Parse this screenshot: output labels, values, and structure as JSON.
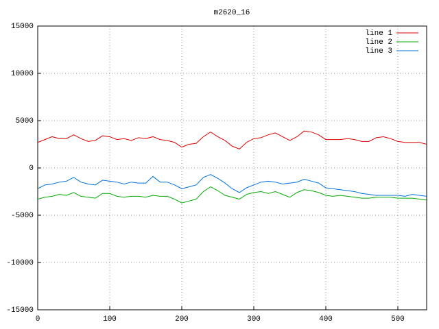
{
  "chart_data": {
    "type": "line",
    "title": "m2620_16",
    "x": [
      0,
      10,
      20,
      30,
      40,
      50,
      60,
      70,
      80,
      90,
      100,
      110,
      120,
      130,
      140,
      150,
      160,
      170,
      180,
      190,
      200,
      210,
      220,
      230,
      240,
      250,
      260,
      270,
      280,
      290,
      300,
      310,
      320,
      330,
      340,
      350,
      360,
      370,
      380,
      390,
      400,
      410,
      420,
      430,
      440,
      450,
      460,
      470,
      480,
      490,
      500,
      510,
      520,
      530,
      540
    ],
    "series": [
      {
        "name": "line 1",
        "color": "#dd0000",
        "values": [
          2700,
          3000,
          3300,
          3100,
          3100,
          3500,
          3100,
          2800,
          2900,
          3400,
          3300,
          3000,
          3100,
          2900,
          3200,
          3100,
          3300,
          3000,
          2900,
          2700,
          2200,
          2500,
          2600,
          3300,
          3800,
          3300,
          2900,
          2300,
          2000,
          2700,
          3100,
          3200,
          3500,
          3700,
          3300,
          2900,
          3300,
          3900,
          3800,
          3500,
          3000,
          3000,
          3000,
          3100,
          3000,
          2800,
          2800,
          3200,
          3300,
          3100,
          2800,
          2700,
          2700,
          2700,
          2500
        ]
      },
      {
        "name": "line 2",
        "color": "#00aa00",
        "values": [
          -3300,
          -3100,
          -3000,
          -2800,
          -2900,
          -2600,
          -3000,
          -3100,
          -3200,
          -2700,
          -2700,
          -3000,
          -3100,
          -3000,
          -3000,
          -3100,
          -2900,
          -3000,
          -3000,
          -3300,
          -3700,
          -3500,
          -3300,
          -2500,
          -2000,
          -2400,
          -2900,
          -3100,
          -3300,
          -2800,
          -2600,
          -2500,
          -2700,
          -2500,
          -2800,
          -3100,
          -2600,
          -2300,
          -2400,
          -2600,
          -2900,
          -3000,
          -2900,
          -3000,
          -3100,
          -3200,
          -3200,
          -3100,
          -3100,
          -3100,
          -3200,
          -3200,
          -3200,
          -3300,
          -3400
        ]
      },
      {
        "name": "line 3",
        "color": "#0070dd",
        "values": [
          -2200,
          -1800,
          -1700,
          -1500,
          -1400,
          -1000,
          -1500,
          -1700,
          -1800,
          -1300,
          -1400,
          -1500,
          -1700,
          -1500,
          -1600,
          -1600,
          -900,
          -1500,
          -1500,
          -1800,
          -2200,
          -2000,
          -1800,
          -1000,
          -700,
          -1100,
          -1600,
          -2200,
          -2600,
          -2100,
          -1800,
          -1500,
          -1400,
          -1500,
          -1700,
          -1600,
          -1500,
          -1200,
          -1400,
          -1600,
          -2100,
          -2200,
          -2300,
          -2400,
          -2500,
          -2700,
          -2800,
          -2900,
          -2900,
          -2900,
          -2900,
          -3000,
          -2800,
          -2900,
          -3000
        ]
      }
    ],
    "xlim": [
      0,
      540
    ],
    "xticks": [
      0,
      100,
      200,
      300,
      400,
      500
    ],
    "ylim": [
      -15000,
      15000
    ],
    "yticks": [
      -15000,
      -10000,
      -5000,
      0,
      5000,
      10000,
      15000
    ],
    "grid": true,
    "legend": "top-right"
  }
}
